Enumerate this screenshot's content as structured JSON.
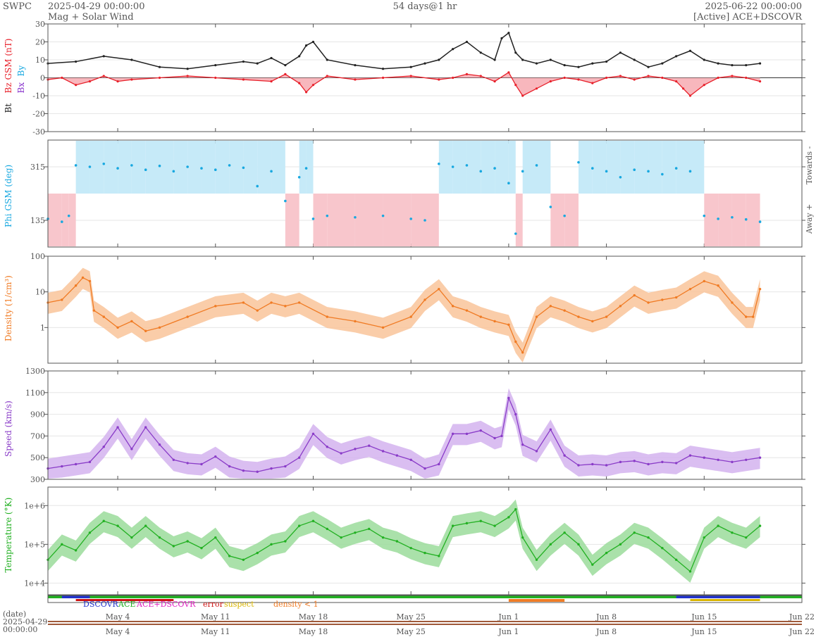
{
  "header": {
    "org": "SWPC",
    "start": "2025-04-29 00:00:00",
    "subtitle": "Mag + Solar Wind",
    "span": "54 days@1 hr",
    "end": "2025-06-22 00:00:00",
    "source": "[Active] ACE+DSCOVR"
  },
  "chart_data": {
    "type": "line",
    "time_range": [
      "2025-04-29 00:00:00",
      "2025-06-22 00:00:00"
    ],
    "x_ticks": [
      "May 4",
      "May 11",
      "May 18",
      "May 25",
      "Jun 1",
      "Jun 8",
      "Jun 15",
      "Jun 22"
    ],
    "x_tick_days": [
      5,
      12,
      19,
      26,
      33,
      40,
      47,
      54
    ],
    "date_label": "(date)",
    "date_start_line1": "2025-04-29",
    "date_start_line2": "00:00:00",
    "colors": {
      "bt": "#222222",
      "bz": "#e8202a",
      "bx": "#8833cc",
      "by": "#18a8e0",
      "bz_fill": "#f6a5ad",
      "bz_neg_fill": "#d9c9ee",
      "phi": "#18a8e0",
      "phi_toward": "#c6eaf8",
      "phi_away": "#f8c6cc",
      "density": "#f07b24",
      "density_fill": "#f9c49a",
      "speed": "#8a3cc8",
      "speed_fill": "#d3b3ef",
      "temp": "#22b022",
      "temp_fill": "#9bdc9b"
    },
    "panels": [
      {
        "id": "mag",
        "ylabel": {
          "bt": "Bt",
          "bz": "Bz GSM (nT)",
          "bx": "Bx",
          "by": "By"
        },
        "scale": "linear",
        "ylim": [
          -30,
          30
        ],
        "yticks": [
          -30,
          -20,
          -10,
          0,
          10,
          20,
          30
        ],
        "series": [
          {
            "name": "Bt",
            "days": [
              0,
              2,
              4,
              6,
              8,
              10,
              12,
              14,
              15,
              16,
              17,
              18,
              18.5,
              19,
              20,
              22,
              24,
              26,
              27,
              28,
              29,
              30,
              31,
              32,
              32.5,
              33,
              33.5,
              34,
              35,
              36,
              37,
              38,
              39,
              40,
              41,
              42,
              43,
              44,
              45,
              46,
              47,
              48,
              49,
              50,
              51
            ],
            "values": [
              8,
              9,
              12,
              10,
              6,
              5,
              7,
              9,
              8,
              11,
              7,
              12,
              18,
              20,
              10,
              7,
              5,
              6,
              8,
              10,
              16,
              20,
              14,
              10,
              22,
              25,
              14,
              10,
              8,
              10,
              7,
              6,
              8,
              9,
              14,
              10,
              6,
              8,
              12,
              15,
              10,
              8,
              7,
              7,
              8
            ]
          },
          {
            "name": "Bz",
            "days": [
              0,
              1,
              2,
              3,
              4,
              5,
              6,
              8,
              10,
              12,
              14,
              16,
              17,
              18,
              18.5,
              19,
              20,
              22,
              24,
              26,
              28,
              29,
              30,
              31,
              32,
              33,
              33.5,
              34,
              35,
              36,
              37,
              38,
              39,
              40,
              41,
              42,
              43,
              44,
              45,
              45.5,
              46,
              47,
              48,
              49,
              50,
              51
            ],
            "values": [
              -1,
              0,
              -4,
              -2,
              1,
              -2,
              -1,
              0,
              1,
              0,
              -1,
              -2,
              2,
              -3,
              -8,
              -4,
              1,
              -1,
              0,
              1,
              -1,
              0,
              2,
              1,
              -2,
              3,
              -4,
              -10,
              -6,
              -2,
              0,
              -1,
              -3,
              0,
              1,
              -1,
              1,
              0,
              -2,
              -6,
              -10,
              -4,
              0,
              1,
              0,
              -2
            ]
          }
        ]
      },
      {
        "id": "phi",
        "ylabel": "Phi GSM (deg)",
        "right_labels": [
          "Towards -",
          "Away +"
        ],
        "scale": "linear",
        "ylim": [
          45,
          405
        ],
        "yticks": [
          135,
          315
        ],
        "series": [
          {
            "name": "Phi",
            "days": [
              0,
              1,
              1.5,
              2,
              3,
              4,
              5,
              6,
              7,
              8,
              9,
              10,
              11,
              12,
              13,
              14,
              15,
              16,
              17,
              18,
              18.5,
              19,
              20,
              22,
              24,
              26,
              27,
              28,
              29,
              30,
              31,
              32,
              33,
              33.5,
              34,
              35,
              36,
              37,
              38,
              39,
              40,
              41,
              42,
              43,
              44,
              45,
              46,
              47,
              48,
              49,
              50,
              51
            ],
            "values": [
              140,
              130,
              150,
              320,
              315,
              325,
              310,
              320,
              305,
              318,
              300,
              315,
              310,
              305,
              320,
              312,
              250,
              300,
              200,
              280,
              310,
              140,
              150,
              145,
              150,
              140,
              135,
              325,
              315,
              320,
              300,
              310,
              260,
              90,
              300,
              320,
              180,
              150,
              330,
              310,
              300,
              280,
              305,
              300,
              290,
              310,
              300,
              150,
              140,
              145,
              138,
              130
            ]
          }
        ]
      },
      {
        "id": "density",
        "ylabel": "Density (1/cm³)",
        "scale": "log",
        "ylim": [
          0.1,
          100
        ],
        "yticks": [
          1,
          10,
          100
        ],
        "ytick_labels": [
          "1",
          "10",
          "100"
        ],
        "series": [
          {
            "name": "Density",
            "days": [
              0,
              1,
              2,
              2.5,
              3,
              3.3,
              4,
              5,
              6,
              7,
              8,
              10,
              12,
              14,
              15,
              16,
              17,
              18,
              20,
              22,
              24,
              26,
              27,
              28,
              29,
              30,
              31,
              32,
              33,
              33.5,
              34,
              35,
              36,
              37,
              38,
              39,
              40,
              41,
              42,
              43,
              44,
              45,
              46,
              47,
              48,
              49,
              50,
              50.5,
              51
            ],
            "values": [
              5,
              6,
              15,
              25,
              20,
              3,
              2,
              1,
              1.5,
              0.8,
              1,
              2,
              4,
              5,
              3,
              5,
              4,
              5,
              2,
              1.5,
              1,
              2,
              6,
              12,
              4,
              3,
              2,
              1.5,
              1.2,
              0.4,
              0.2,
              2,
              4,
              3,
              2,
              1.5,
              2,
              4,
              8,
              5,
              6,
              7,
              12,
              20,
              15,
              5,
              2,
              2,
              12
            ]
          }
        ]
      },
      {
        "id": "speed",
        "ylabel": "Speed (km/s)",
        "scale": "linear",
        "ylim": [
          300,
          1300
        ],
        "yticks": [
          300,
          500,
          700,
          900,
          1100,
          1300
        ],
        "series": [
          {
            "name": "Speed",
            "days": [
              0,
              1,
              2,
              3,
              4,
              5,
              6,
              7,
              8,
              9,
              10,
              11,
              12,
              13,
              14,
              15,
              16,
              17,
              18,
              19,
              20,
              21,
              22,
              23,
              24,
              25,
              26,
              27,
              28,
              29,
              30,
              31,
              32,
              32.5,
              33,
              33.5,
              34,
              35,
              36,
              37,
              38,
              39,
              40,
              41,
              42,
              43,
              44,
              45,
              46,
              47,
              48,
              49,
              50,
              51
            ],
            "values": [
              400,
              420,
              440,
              460,
              600,
              780,
              580,
              780,
              620,
              480,
              450,
              440,
              510,
              420,
              380,
              370,
              400,
              420,
              500,
              720,
              600,
              540,
              580,
              610,
              560,
              520,
              480,
              400,
              440,
              720,
              720,
              750,
              680,
              700,
              1050,
              900,
              620,
              560,
              760,
              520,
              430,
              440,
              430,
              460,
              470,
              440,
              460,
              450,
              520,
              500,
              480,
              460,
              480,
              500
            ]
          }
        ]
      },
      {
        "id": "temp",
        "ylabel": "Temperature (°K)",
        "scale": "log",
        "ylim": [
          5000,
          3000000
        ],
        "yticks": [
          10000,
          100000,
          1000000
        ],
        "ytick_labels": [
          "1e+4",
          "1e+5",
          "1e+6"
        ],
        "series": [
          {
            "name": "Temperature",
            "days": [
              0,
              1,
              2,
              3,
              4,
              5,
              6,
              7,
              8,
              9,
              10,
              11,
              12,
              13,
              14,
              15,
              16,
              17,
              18,
              19,
              20,
              21,
              22,
              23,
              24,
              25,
              26,
              27,
              28,
              29,
              30,
              31,
              32,
              33,
              33.5,
              34,
              35,
              36,
              37,
              38,
              39,
              40,
              41,
              42,
              43,
              44,
              45,
              46,
              47,
              48,
              49,
              50,
              51
            ],
            "values": [
              40000,
              100000,
              70000,
              200000,
              400000,
              300000,
              150000,
              300000,
              150000,
              90000,
              120000,
              80000,
              150000,
              50000,
              40000,
              60000,
              100000,
              120000,
              300000,
              400000,
              250000,
              150000,
              200000,
              250000,
              150000,
              120000,
              80000,
              60000,
              50000,
              300000,
              350000,
              400000,
              300000,
              500000,
              800000,
              150000,
              40000,
              100000,
              200000,
              100000,
              30000,
              60000,
              100000,
              200000,
              150000,
              80000,
              40000,
              20000,
              150000,
              300000,
              200000,
              150000,
              300000
            ]
          }
        ]
      }
    ],
    "source_legend": [
      {
        "label": "DSCOVR",
        "color": "#2233cc"
      },
      {
        "label": "ACE",
        "color": "#22b022"
      },
      {
        "label": "ACE+DSCOVR",
        "color": "#e020c0"
      },
      {
        "label": "error",
        "color": "#cc1111"
      },
      {
        "label": "suspect",
        "color": "#d8b400"
      },
      {
        "label": "density < 1",
        "color": "#f07b24"
      }
    ]
  }
}
